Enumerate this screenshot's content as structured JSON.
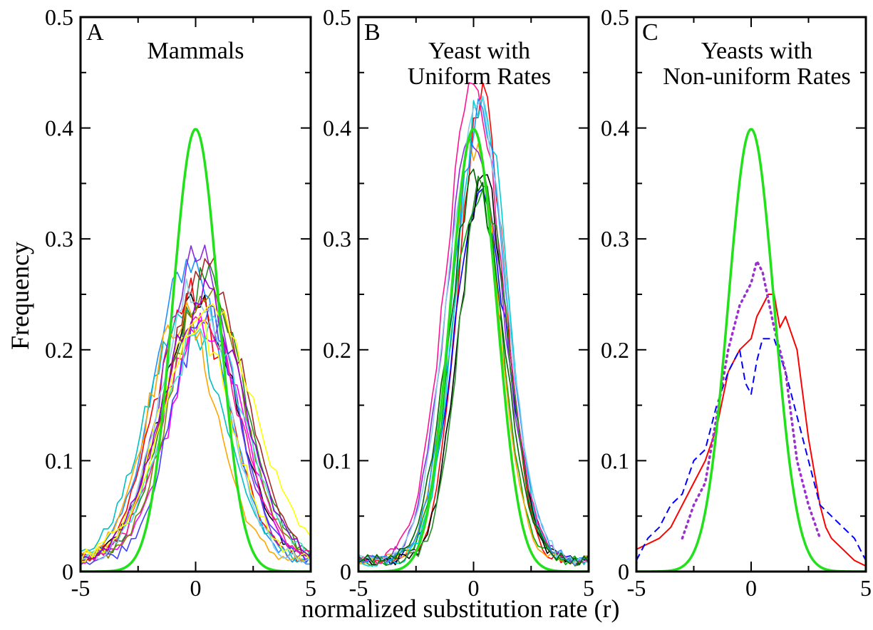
{
  "figure": {
    "ylabel": "Frequency",
    "xlabel": "normalized substitution rate (r)"
  },
  "colors": {
    "gaussian": "#22e01a",
    "frame": "#000000",
    "panel_a_palette": [
      "#000000",
      "#ff0000",
      "#1e90ff",
      "#00c0c0",
      "#ff00ff",
      "#8a2be2",
      "#228b22",
      "#ffa500",
      "#808000",
      "#4040ff",
      "#ff1493",
      "#40e0d0",
      "#a52a2a",
      "#ffff00",
      "#87ceeb",
      "#9400d3"
    ],
    "panel_b_palette": [
      "#ff0000",
      "#0000ff",
      "#00aa00",
      "#ffa500",
      "#8a2be2",
      "#000000",
      "#00ced1",
      "#ff1493",
      "#228b22",
      "#1e90ff",
      "#87ceeb",
      "#006400"
    ],
    "panel_c": {
      "solid": "#ff0000",
      "dashed": "#0000ff",
      "dotted": "#9932cc"
    }
  },
  "chart_data": [
    {
      "type": "line",
      "panel_label": "A",
      "title_lines": [
        "Mammals"
      ],
      "xlim": [
        -5,
        5
      ],
      "ylim": [
        0,
        0.5
      ],
      "xticks": [
        -5,
        0,
        5
      ],
      "yticks": [
        0,
        0.1,
        0.2,
        0.3,
        0.4,
        0.5
      ],
      "ytick_labels": [
        "0",
        "0.1",
        "0.2",
        "0.3",
        "0.4",
        "0.5"
      ],
      "xtick_labels": [
        "-5",
        "0",
        "5"
      ],
      "reference": {
        "name": "standard normal",
        "mean": 0,
        "sd": 1,
        "peak": 0.399
      },
      "family": {
        "count": 16,
        "center_range": [
          -0.6,
          0.5
        ],
        "peak_range": [
          0.21,
          0.28
        ],
        "sd_range": [
          1.45,
          1.75
        ],
        "baseline_at_edge": 0.01
      },
      "outlier": {
        "color_index": 13,
        "center": 0.6,
        "peak": 0.23,
        "sd": 1.9,
        "note_points": [
          [
            -4,
            0.03
          ],
          [
            -3,
            0.04
          ],
          [
            -1,
            0.17
          ],
          [
            0,
            0.21
          ],
          [
            1,
            0.24
          ],
          [
            1.5,
            0.22
          ],
          [
            2,
            0.13
          ],
          [
            3,
            0.05
          ]
        ]
      }
    },
    {
      "type": "line",
      "panel_label": "B",
      "title_lines": [
        "Yeast with",
        "Uniform Rates"
      ],
      "xlim": [
        -5,
        5
      ],
      "ylim": [
        0,
        0.5
      ],
      "xticks": [
        -5,
        0,
        5
      ],
      "yticks": [
        0,
        0.1,
        0.2,
        0.3,
        0.4,
        0.5
      ],
      "ytick_labels": [
        "0",
        "0.1",
        "0.2",
        "0.3",
        "0.4",
        "0.5"
      ],
      "xtick_labels": [
        "-5",
        "0",
        "5"
      ],
      "reference": {
        "name": "standard normal",
        "mean": 0,
        "sd": 1,
        "peak": 0.399
      },
      "family": {
        "count": 12,
        "center_range": [
          0.0,
          0.45
        ],
        "peak_range": [
          0.32,
          0.44
        ],
        "sd_range": [
          1.0,
          1.25
        ],
        "baseline_at_edge": 0.01
      }
    },
    {
      "type": "line",
      "panel_label": "C",
      "title_lines": [
        "Yeasts with",
        "Non-uniform Rates"
      ],
      "xlim": [
        -5,
        5
      ],
      "ylim": [
        0,
        0.5
      ],
      "xticks": [
        -5,
        0,
        5
      ],
      "yticks": [
        0,
        0.1,
        0.2,
        0.3,
        0.4,
        0.5
      ],
      "ytick_labels": [
        "0",
        "0.1",
        "0.2",
        "0.3",
        "0.4",
        "0.5"
      ],
      "xtick_labels": [
        "-5",
        "0",
        "5"
      ],
      "reference": {
        "name": "standard normal",
        "mean": 0,
        "sd": 1,
        "peak": 0.399
      },
      "series": [
        {
          "style": "solid",
          "x": [
            -5,
            -4.5,
            -4,
            -3.5,
            -3,
            -2.5,
            -2,
            -1.5,
            -1,
            -0.5,
            0,
            0.25,
            0.5,
            0.75,
            1,
            1.25,
            1.5,
            2,
            2.5,
            3,
            3.25,
            3.5,
            4,
            4.5,
            5
          ],
          "y": [
            0.02,
            0.025,
            0.03,
            0.04,
            0.06,
            0.08,
            0.1,
            0.13,
            0.18,
            0.2,
            0.21,
            0.23,
            0.24,
            0.25,
            0.25,
            0.22,
            0.23,
            0.2,
            0.12,
            0.06,
            0.04,
            0.03,
            0.02,
            0.01,
            0.005
          ]
        },
        {
          "style": "dashed",
          "x": [
            -5,
            -4.5,
            -4,
            -3.5,
            -3,
            -2.5,
            -2,
            -1.5,
            -1,
            -0.5,
            -0.25,
            0,
            0.25,
            0.5,
            0.75,
            1,
            1.5,
            2,
            2.5,
            3,
            3.5,
            4,
            4.5,
            5
          ],
          "y": [
            0.01,
            0.03,
            0.04,
            0.06,
            0.07,
            0.1,
            0.11,
            0.15,
            0.18,
            0.2,
            0.17,
            0.16,
            0.19,
            0.21,
            0.21,
            0.21,
            0.18,
            0.14,
            0.1,
            0.06,
            0.05,
            0.04,
            0.03,
            0.01
          ]
        },
        {
          "style": "dotted",
          "x": [
            -3,
            -2.5,
            -2,
            -1.5,
            -1,
            -0.5,
            0,
            0.25,
            0.5,
            1,
            1.5,
            2,
            2.5,
            3
          ],
          "y": [
            0.03,
            0.06,
            0.08,
            0.14,
            0.2,
            0.24,
            0.26,
            0.28,
            0.27,
            0.22,
            0.18,
            0.1,
            0.06,
            0.03
          ]
        }
      ]
    }
  ]
}
